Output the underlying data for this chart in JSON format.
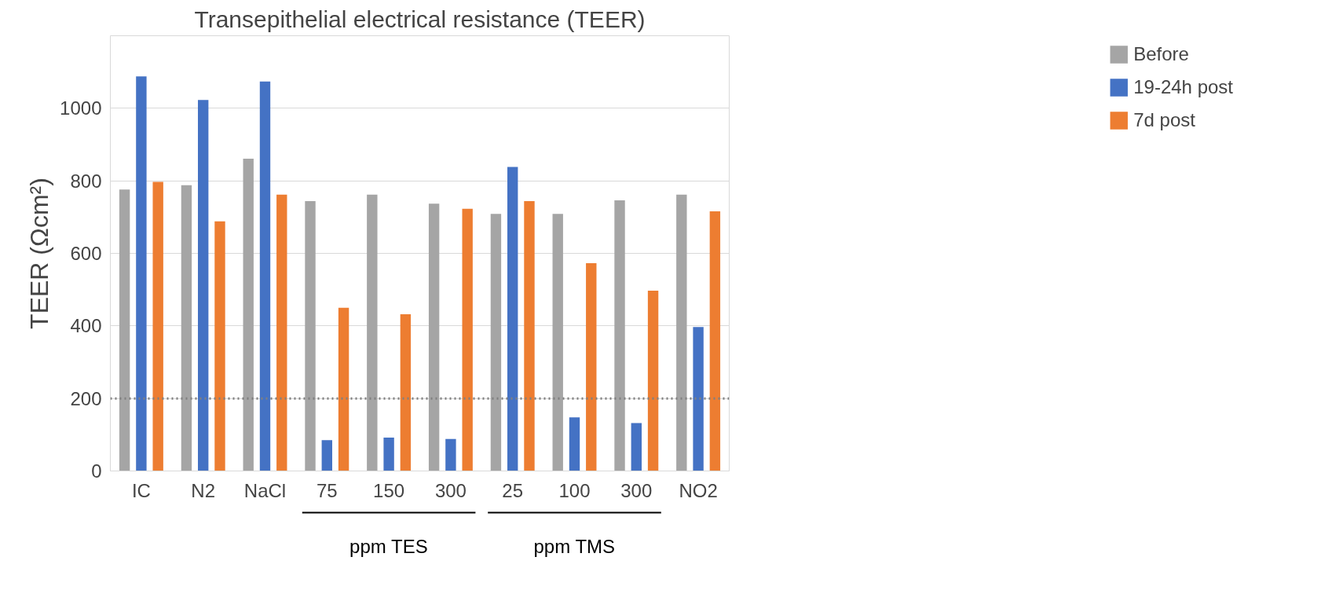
{
  "chart_data": {
    "type": "bar",
    "title": "Transepithelial electrical resistance (TEER)",
    "ylabel": "TEER (Ωcm²)",
    "categories": [
      "IC",
      "N2",
      "NaCl",
      "75",
      "150",
      "300",
      "25",
      "100",
      "300",
      "NO2"
    ],
    "series": [
      {
        "name": "Before",
        "color": "#a5a5a5",
        "values": [
          776,
          788,
          861,
          744,
          762,
          737,
          709,
          709,
          746,
          762
        ]
      },
      {
        "name": "19-24h post",
        "color": "#4472c4",
        "values": [
          1088,
          1023,
          1074,
          85,
          92,
          88,
          838,
          148,
          132,
          397
        ]
      },
      {
        "name": "7d post",
        "color": "#ed7d31",
        "values": [
          797,
          688,
          762,
          450,
          432,
          723,
          744,
          573,
          497,
          716
        ]
      }
    ],
    "ylim": [
      0,
      1200
    ],
    "yticks": [
      0,
      200,
      400,
      600,
      800,
      1000,
      {
        "value": 1200,
        "label": null
      }
    ],
    "grid": "y",
    "legend": "right",
    "ref_lines": [
      {
        "axis": "y",
        "value": 200,
        "color": "#808080",
        "line_style": "dotted"
      }
    ],
    "annotations": [
      "ppm TES",
      "ppm TMS"
    ]
  }
}
